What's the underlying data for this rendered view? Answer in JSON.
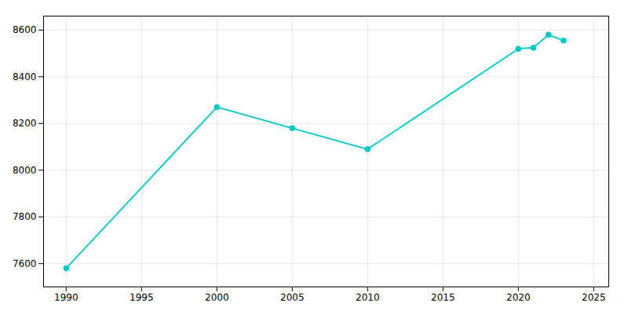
{
  "chart_data": {
    "type": "line",
    "x": [
      1990,
      2000,
      2005,
      2010,
      2020,
      2021,
      2022,
      2023
    ],
    "values": [
      7580,
      8270,
      8180,
      8090,
      8520,
      8525,
      8580,
      8555
    ],
    "color": "#00C8C8",
    "marker": "circle",
    "xlim": [
      1988.5,
      2026
    ],
    "ylim": [
      7500,
      8660
    ],
    "xticks": [
      1990,
      1995,
      2000,
      2005,
      2010,
      2015,
      2020,
      2025
    ],
    "yticks": [
      7600,
      7800,
      8000,
      8200,
      8400,
      8600
    ],
    "grid": true
  }
}
